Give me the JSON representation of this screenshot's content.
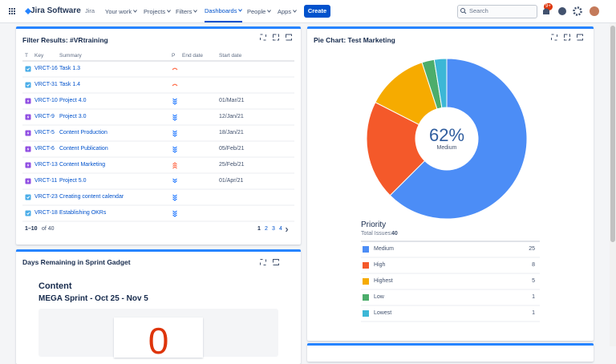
{
  "nav": {
    "product": "Jira Software",
    "site": "Jira",
    "items": [
      "Your work",
      "Projects",
      "Filters",
      "Dashboards",
      "People",
      "Apps"
    ],
    "create": "Create",
    "search": "Search",
    "badge": "9+"
  },
  "filter_gadget": {
    "title": "Filter Results: #VRtraining",
    "columns": [
      "T",
      "Key",
      "Summary",
      "P",
      "End date",
      "Start date"
    ],
    "rows": [
      {
        "key": "VRCT-16",
        "summary": "Task 1.3",
        "start": null
      },
      {
        "key": "VRCT-31",
        "summary": "Task 1.4",
        "start": null
      },
      {
        "key": "VRCT-10",
        "summary": "Project 4.0",
        "start": "01/Mar/21"
      },
      {
        "key": "VRCT-9",
        "summary": "Project 3.0",
        "start": "12/Jan/21"
      },
      {
        "key": "VRCT-5",
        "summary": "Content Production",
        "start": "18/Jan/21"
      },
      {
        "key": "VRCT-6",
        "summary": "Content Publication",
        "start": "05/Feb/21"
      },
      {
        "key": "VRCT-13",
        "summary": "Content Marketing",
        "start": "25/Feb/21"
      },
      {
        "key": "VRCT-11",
        "summary": "Project 5.0",
        "start": "01/Apr/21"
      },
      {
        "key": "VRCT-23",
        "summary": "Creating content calendar",
        "start": null
      },
      {
        "key": "VRCT-18",
        "summary": "Establishing OKRs",
        "start": null
      }
    ],
    "range": "1–10",
    "of_total": "of 40",
    "pages": [
      "1",
      "2",
      "3",
      "4"
    ]
  },
  "sprint_gadget": {
    "title": "Days Remaining in Sprint Gadget",
    "team": "Content",
    "sprint": "MEGA Sprint - Oct 25 - Nov 5",
    "days": "0"
  },
  "chart_data": {
    "type": "pie",
    "title": "Pie Chart: Test Marketing",
    "categories": [
      "Medium",
      "High",
      "Highest",
      "Low",
      "Lowest"
    ],
    "values": [
      25,
      8,
      5,
      1,
      1
    ],
    "colors": [
      "#4c8df6",
      "#f4592a",
      "#f6ab00",
      "#4cad6b",
      "#3cb7d6"
    ],
    "center_label": "62%",
    "center_sublabel": "Medium",
    "legend_title": "Priority",
    "total_label": "Total Issues:",
    "total": 40
  }
}
